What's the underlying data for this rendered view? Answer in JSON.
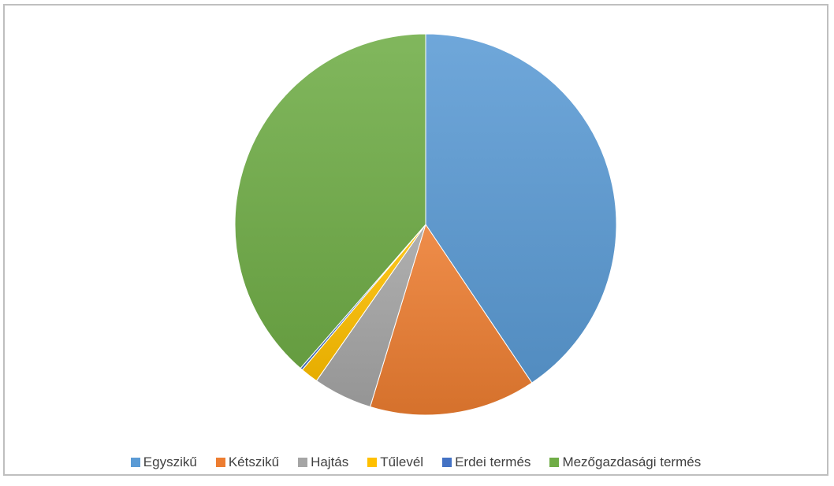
{
  "chart_data": {
    "type": "pie",
    "title": "",
    "categories": [
      "Egyszikű",
      "Kétszikű",
      "Hajtás",
      "Tűlevél",
      "Erdei termés",
      "Mezőgazdasági termés"
    ],
    "values": [
      40.6,
      14.1,
      5.0,
      1.5,
      0.2,
      38.6
    ],
    "unit": "%",
    "colors": [
      "#5B9BD5",
      "#ED7D31",
      "#A5A5A5",
      "#FFC000",
      "#4472C4",
      "#70AD47"
    ],
    "start_angle_deg": 0,
    "direction": "clockwise",
    "legend_position": "bottom"
  }
}
